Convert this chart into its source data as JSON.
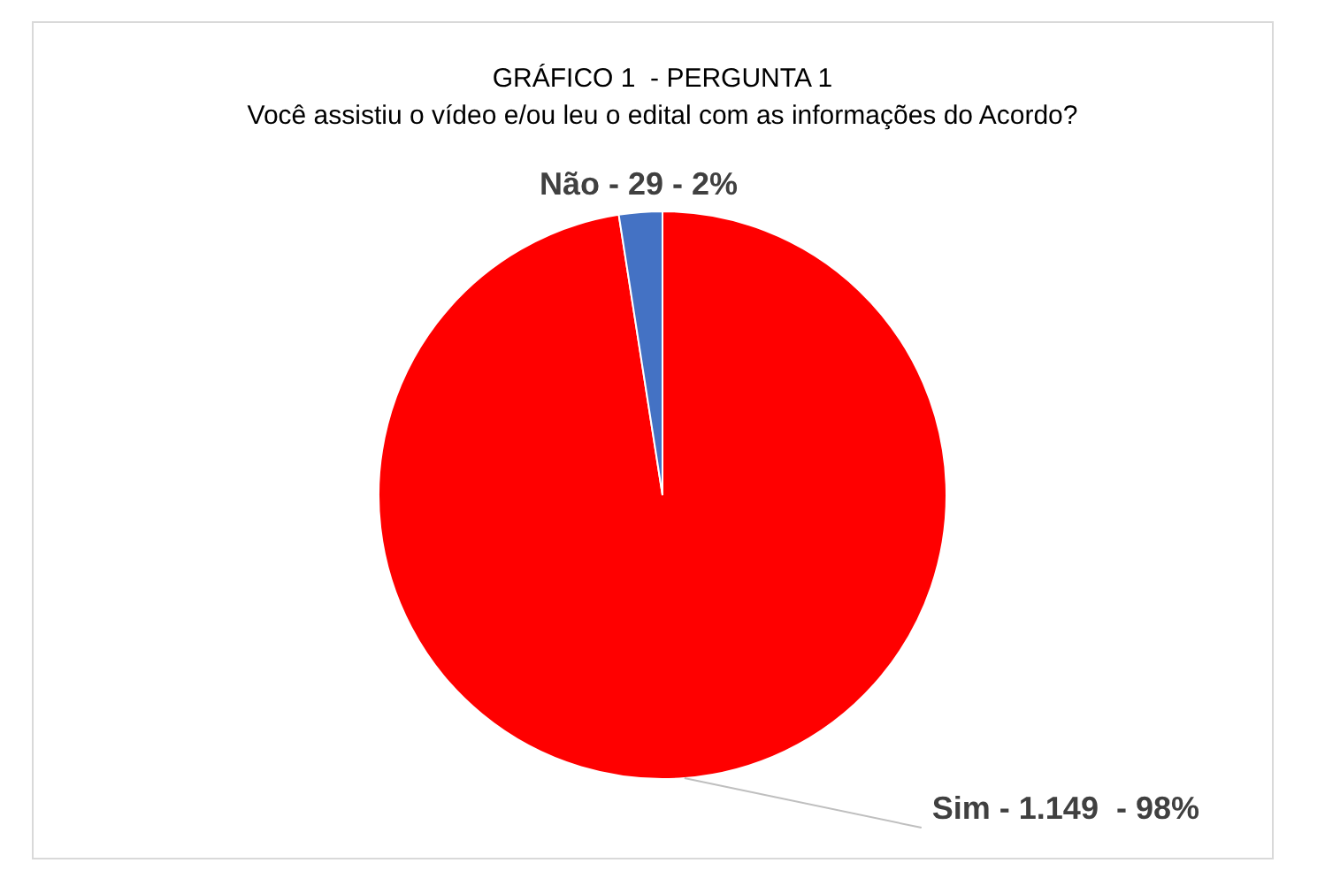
{
  "chart_data": {
    "type": "pie",
    "title": "GRÁFICO 1  - PERGUNTA 1",
    "subtitle": "Você assistiu o vídeo e/ou leu o edital com as informações do Acordo?",
    "categories": [
      "Sim -",
      "Não -"
    ],
    "values": [
      1149,
      29
    ],
    "colors": [
      "#ff0000",
      "#4472c4"
    ],
    "value_labels": [
      "1.149  - 98%",
      "29 - 2%"
    ]
  }
}
